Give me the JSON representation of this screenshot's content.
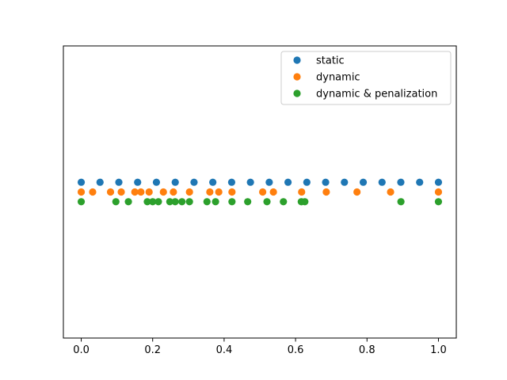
{
  "chart_data": {
    "type": "scatter",
    "title": "",
    "xlabel": "",
    "ylabel": "",
    "xlim": [
      -0.05,
      1.05
    ],
    "ylim": [
      -0.3,
      0.3
    ],
    "xticks": [
      0.0,
      0.2,
      0.4,
      0.6,
      0.8,
      1.0
    ],
    "xtick_labels": [
      "0.0",
      "0.2",
      "0.4",
      "0.6",
      "0.8",
      "1.0"
    ],
    "y_axis_visible": false,
    "grid": false,
    "legend_position": "top-right",
    "series": [
      {
        "name": "static",
        "color": "#1f77b4",
        "y": 0.02,
        "x": [
          0.0,
          0.0526,
          0.1053,
          0.1579,
          0.2105,
          0.2632,
          0.3158,
          0.3684,
          0.4211,
          0.4737,
          0.5263,
          0.5789,
          0.6316,
          0.6842,
          0.7368,
          0.7895,
          0.8421,
          0.8947,
          0.9474,
          1.0
        ]
      },
      {
        "name": "dynamic",
        "color": "#ff7f0e",
        "y": 0.0,
        "x": [
          0.0,
          0.032,
          0.082,
          0.112,
          0.15,
          0.167,
          0.19,
          0.23,
          0.258,
          0.303,
          0.36,
          0.385,
          0.422,
          0.508,
          0.538,
          0.617,
          0.686,
          0.772,
          0.866,
          1.0
        ]
      },
      {
        "name": "dynamic & penalization",
        "color": "#2ca02c",
        "y": -0.02,
        "x": [
          0.0,
          0.097,
          0.132,
          0.185,
          0.2,
          0.216,
          0.248,
          0.263,
          0.282,
          0.303,
          0.352,
          0.376,
          0.422,
          0.466,
          0.52,
          0.566,
          0.616,
          0.626,
          0.895,
          1.0
        ]
      }
    ]
  }
}
